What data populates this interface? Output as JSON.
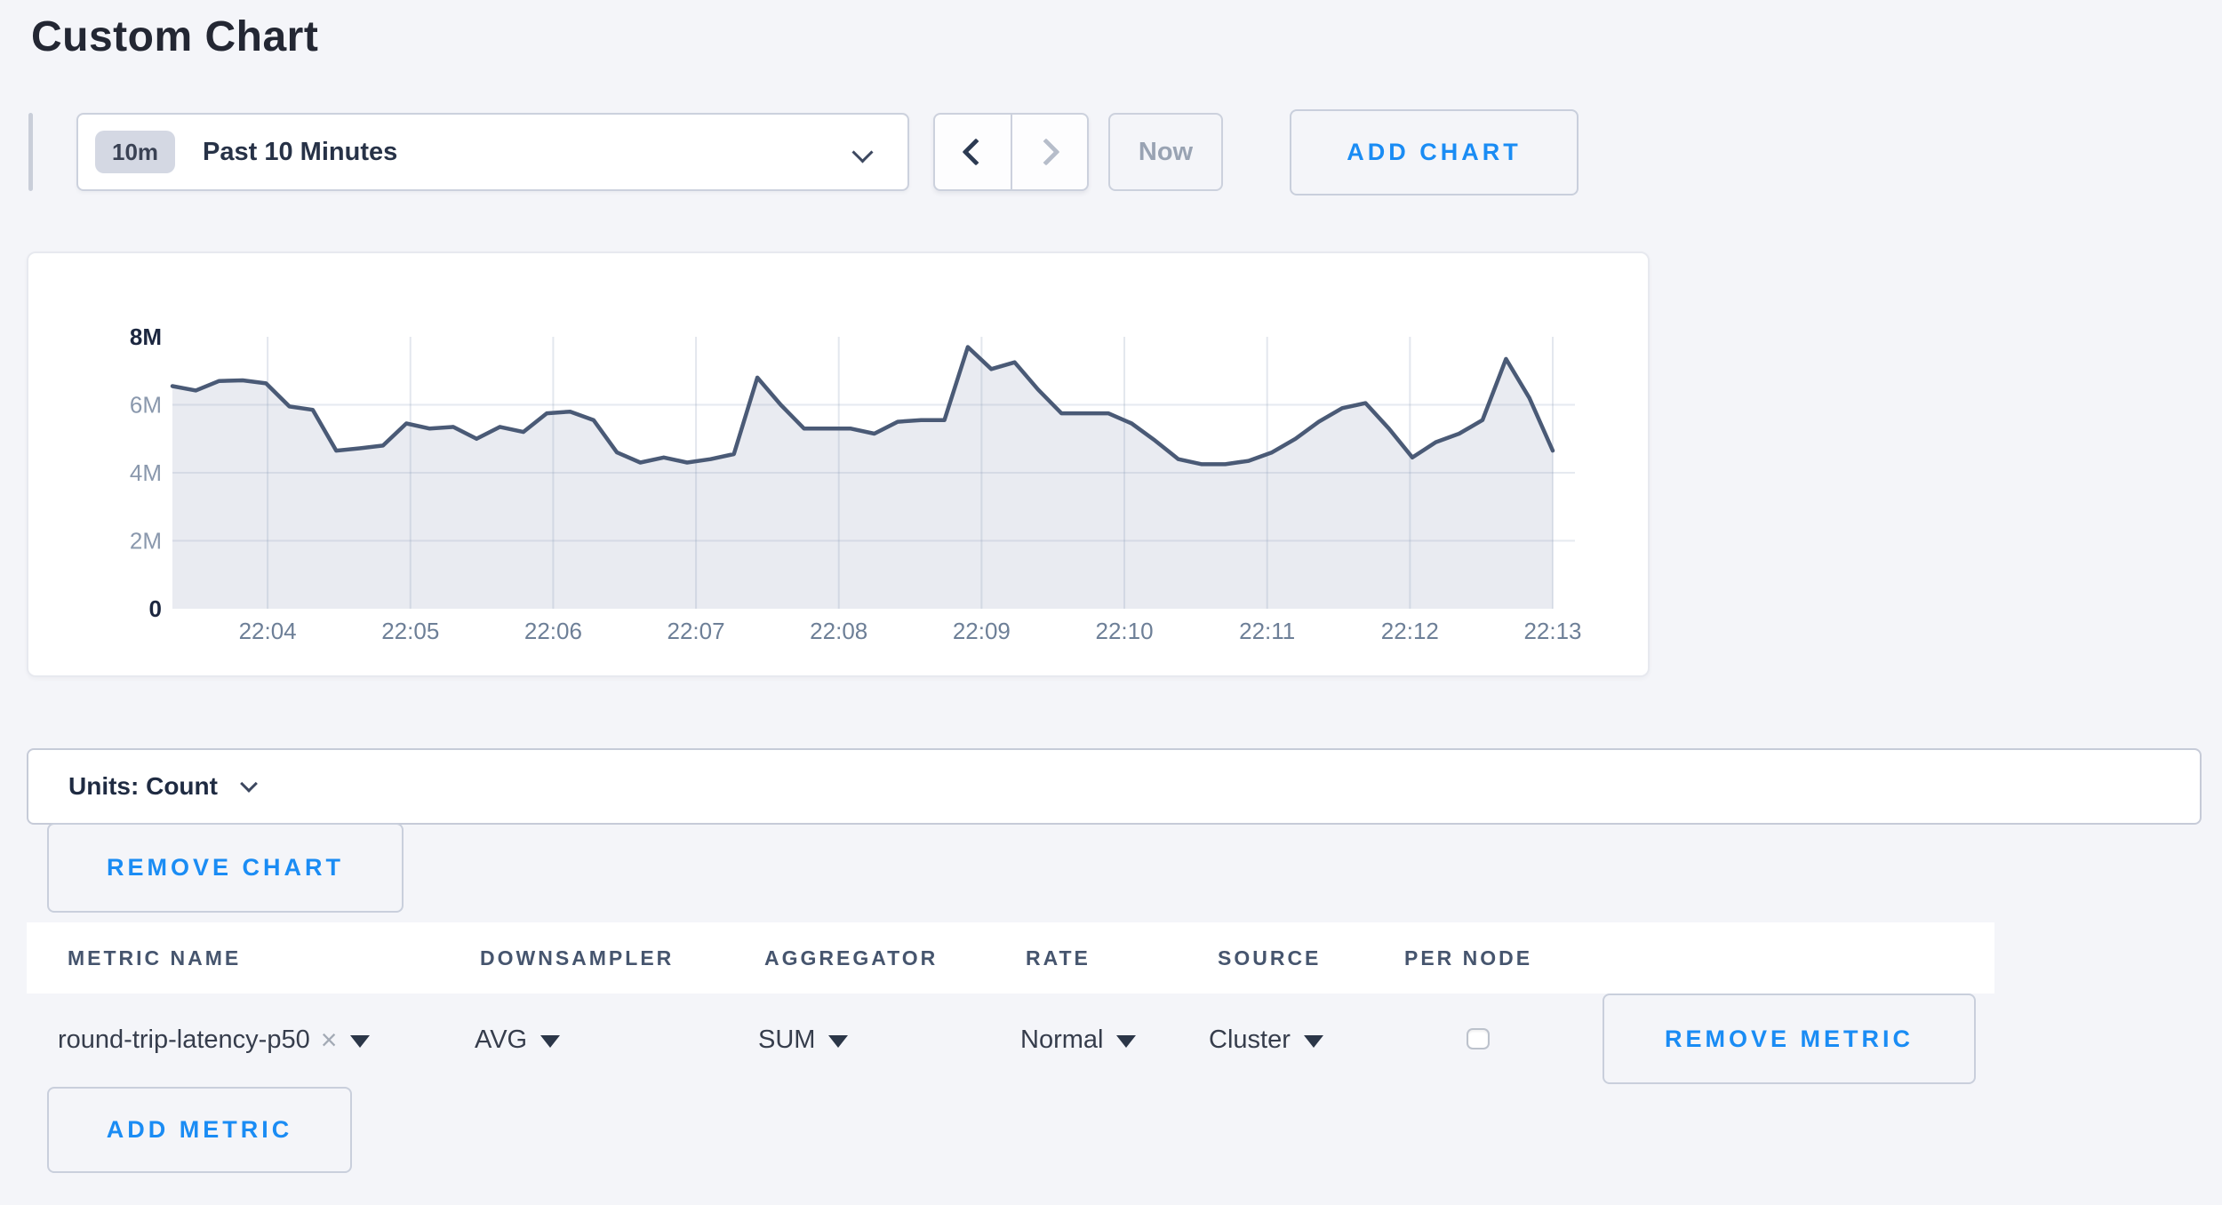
{
  "page": {
    "title": "Custom Chart"
  },
  "toolbar": {
    "timescale": {
      "badge": "10m",
      "label": "Past 10 Minutes"
    },
    "now_label": "Now",
    "add_chart_label": "ADD CHART"
  },
  "chart_data": {
    "type": "area",
    "title": "",
    "xlabel": "",
    "ylabel": "",
    "unit": "Count",
    "ylim": [
      0,
      8000000
    ],
    "grid": true,
    "legend": false,
    "x_ticks": [
      "22:04",
      "22:05",
      "22:06",
      "22:07",
      "22:08",
      "22:09",
      "22:10",
      "22:11",
      "22:12",
      "22:13"
    ],
    "y_ticks": [
      {
        "label": "0",
        "millions": 0,
        "emphasis": true
      },
      {
        "label": "2M",
        "millions": 2,
        "emphasis": false
      },
      {
        "label": "4M",
        "millions": 4,
        "emphasis": false
      },
      {
        "label": "6M",
        "millions": 6,
        "emphasis": false
      },
      {
        "label": "8M",
        "millions": 8,
        "emphasis": true
      }
    ],
    "series": [
      {
        "name": "round-trip-latency-p50",
        "values_millions": [
          6.55,
          6.42,
          6.7,
          6.72,
          6.63,
          5.95,
          5.85,
          4.65,
          4.72,
          4.8,
          5.45,
          5.3,
          5.35,
          5.0,
          5.35,
          5.2,
          5.75,
          5.8,
          5.55,
          4.6,
          4.3,
          4.45,
          4.3,
          4.4,
          4.55,
          6.8,
          6.0,
          5.3,
          5.3,
          5.3,
          5.15,
          5.5,
          5.55,
          5.55,
          7.7,
          7.05,
          7.25,
          6.45,
          5.75,
          5.75,
          5.75,
          5.45,
          4.95,
          4.4,
          4.25,
          4.25,
          4.35,
          4.6,
          5.0,
          5.5,
          5.9,
          6.05,
          5.3,
          4.45,
          4.9,
          5.15,
          5.55,
          7.35,
          6.2,
          4.65
        ]
      }
    ],
    "colors": {
      "line": "#4a5a76",
      "fill": "#e9ebf1",
      "grid": "#8ea0bb"
    }
  },
  "units_bar": {
    "label": "Units: Count"
  },
  "chart_controls": {
    "remove_chart_label": "REMOVE CHART",
    "add_metric_label": "ADD METRIC"
  },
  "icons": {
    "clear": "×"
  },
  "metrics_table": {
    "headers": [
      "METRIC NAME",
      "DOWNSAMPLER",
      "AGGREGATOR",
      "RATE",
      "SOURCE",
      "PER NODE"
    ],
    "rows": [
      {
        "metric_name": "round-trip-latency-p50",
        "downsampler": "AVG",
        "aggregator": "SUM",
        "rate": "Normal",
        "source": "Cluster",
        "per_node_checked": false,
        "remove_label": "REMOVE METRIC"
      }
    ]
  }
}
